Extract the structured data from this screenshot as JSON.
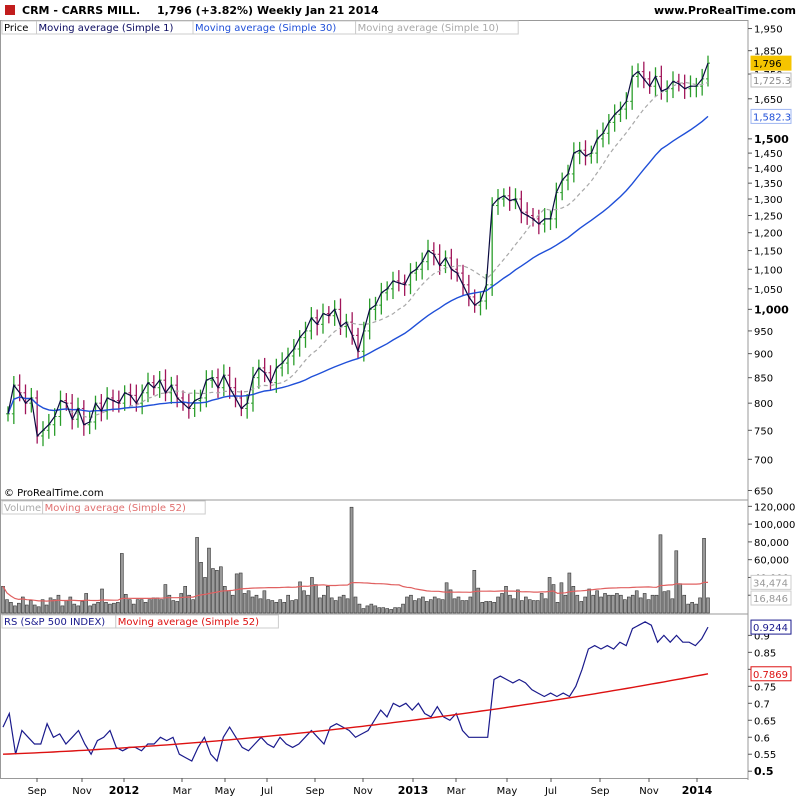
{
  "header": {
    "symbol_name": "CRM - CARRS MILL.",
    "last_change": "1,796 (+3.82%)",
    "period_date": "Weekly  Jan 21 2014",
    "site": "www.ProRealTime.com"
  },
  "copyright": "© ProRealTime.com",
  "colors": {
    "up": "#2a9d2a",
    "down": "#a0155a",
    "ma1": "#0a0a40",
    "ma30": "#1f4fd8",
    "ma10": "#a8a8a8",
    "volume": "#888888",
    "vol_ma": "#e06060",
    "rs": "#1a1a8c",
    "rs_ma": "#dd1111",
    "price_badge": "#f5c400"
  },
  "chart_data": [
    {
      "type": "ohlc",
      "panel": "price",
      "legend": [
        "Price",
        "Moving average (Simple 1)",
        "Moving average (Simple 30)",
        "Moving average (Simple 10)"
      ],
      "y_scale": "log",
      "ylim": [
        640,
        1990
      ],
      "y_ticks": [
        {
          "v": 650,
          "label": "650",
          "bold": false
        },
        {
          "v": 700,
          "label": "700",
          "bold": false
        },
        {
          "v": 750,
          "label": "750",
          "bold": false
        },
        {
          "v": 800,
          "label": "800",
          "bold": false
        },
        {
          "v": 850,
          "label": "850",
          "bold": false
        },
        {
          "v": 900,
          "label": "900",
          "bold": false
        },
        {
          "v": 950,
          "label": "950",
          "bold": false
        },
        {
          "v": 1000,
          "label": "1,000",
          "bold": true
        },
        {
          "v": 1050,
          "label": "1,050",
          "bold": false
        },
        {
          "v": 1100,
          "label": "1,100",
          "bold": false
        },
        {
          "v": 1150,
          "label": "1,150",
          "bold": false
        },
        {
          "v": 1200,
          "label": "1,200",
          "bold": false
        },
        {
          "v": 1250,
          "label": "1,250",
          "bold": false
        },
        {
          "v": 1300,
          "label": "1,300",
          "bold": false
        },
        {
          "v": 1350,
          "label": "1,350",
          "bold": false
        },
        {
          "v": 1400,
          "label": "1,400",
          "bold": false
        },
        {
          "v": 1450,
          "label": "1,450",
          "bold": false
        },
        {
          "v": 1500,
          "label": "1,500",
          "bold": true
        },
        {
          "v": 1650,
          "label": "1,650",
          "bold": false
        },
        {
          "v": 1750,
          "label": "1,750",
          "bold": false
        },
        {
          "v": 1850,
          "label": "1,850",
          "bold": false
        },
        {
          "v": 1950,
          "label": "1,950",
          "bold": false
        }
      ],
      "badges": [
        {
          "label": "1,796",
          "value": 1796,
          "style": "last"
        },
        {
          "label": "1,725.3",
          "value": 1725.3,
          "style": "ma10"
        },
        {
          "label": "1,582.3",
          "value": 1582.3,
          "style": "ma30"
        }
      ],
      "closes": [
        780,
        835,
        820,
        800,
        810,
        740,
        750,
        760,
        775,
        805,
        800,
        770,
        790,
        760,
        765,
        800,
        785,
        810,
        805,
        800,
        820,
        815,
        800,
        820,
        840,
        830,
        845,
        820,
        835,
        810,
        800,
        790,
        805,
        810,
        845,
        850,
        830,
        855,
        830,
        810,
        790,
        800,
        850,
        870,
        860,
        840,
        870,
        880,
        895,
        910,
        935,
        950,
        980,
        965,
        990,
        985,
        1000,
        960,
        970,
        940,
        905,
        950,
        1000,
        1010,
        1040,
        1050,
        1070,
        1065,
        1060,
        1090,
        1100,
        1120,
        1150,
        1140,
        1110,
        1130,
        1100,
        1090,
        1060,
        1030,
        1010,
        1020,
        1060,
        1280,
        1300,
        1310,
        1295,
        1300,
        1260,
        1250,
        1240,
        1225,
        1240,
        1240,
        1320,
        1360,
        1380,
        1450,
        1460,
        1440,
        1450,
        1500,
        1520,
        1560,
        1590,
        1610,
        1640,
        1740,
        1760,
        1730,
        1700,
        1740,
        1680,
        1690,
        1720,
        1710,
        1690,
        1700,
        1700,
        1730,
        1796
      ],
      "ma30_end": 1582.3,
      "ma10_end": 1725.3
    },
    {
      "type": "bar",
      "panel": "volume",
      "legend": [
        "Volume",
        "Moving average (Simple 52)"
      ],
      "ylim": [
        0,
        126000
      ],
      "y_ticks": [
        {
          "v": 20000,
          "label": "20,000"
        },
        {
          "v": 40000,
          "label": "40,000"
        },
        {
          "v": 60000,
          "label": "60,000"
        },
        {
          "v": 80000,
          "label": "80,000"
        },
        {
          "v": 100000,
          "label": "100,000"
        },
        {
          "v": 120000,
          "label": "120,000"
        }
      ],
      "badges": [
        {
          "label": "34,474",
          "value": 34474,
          "style": "vma"
        },
        {
          "label": "16,846",
          "value": 16846,
          "style": "vol"
        }
      ],
      "values": [
        30000,
        15000,
        12000,
        8000,
        11000,
        18000,
        9000,
        14000,
        9000,
        7000,
        15000,
        9000,
        17000,
        15000,
        20000,
        8000,
        14000,
        18000,
        10000,
        8000,
        13000,
        22000,
        8000,
        10000,
        12000,
        27000,
        12000,
        10000,
        11000,
        12000,
        67000,
        21000,
        15000,
        10000,
        15000,
        15000,
        12000,
        15000,
        17000,
        17000,
        15000,
        32000,
        20000,
        14000,
        13000,
        22000,
        30000,
        20000,
        15000,
        85000,
        57000,
        40000,
        73000,
        50000,
        48000,
        52000,
        30000,
        25000,
        20000,
        44000,
        45000,
        22000,
        25000,
        18000,
        20000,
        16000,
        25000,
        15000,
        14000,
        12000,
        15000,
        12000,
        20000,
        14000,
        15000,
        35000,
        25000,
        20000,
        40000,
        32000,
        17000,
        20000,
        30000,
        17000,
        14000,
        18000,
        20000,
        16000,
        119000,
        18000,
        10000,
        5000,
        8000,
        10000,
        8000,
        6000,
        6000,
        5000,
        4000,
        6000,
        6000,
        10000,
        18000,
        20000,
        14000,
        16000,
        18000,
        13000,
        15000,
        18000,
        16000,
        15000,
        34000,
        26000,
        16000,
        18000,
        14000,
        14000,
        18000,
        48000,
        28000,
        12000,
        13000,
        13000,
        12000,
        18000,
        22000,
        30000,
        20000,
        16000,
        26000,
        14000,
        18000,
        15000,
        14000,
        14000,
        22000,
        16000,
        40000,
        32000,
        12000,
        34000,
        20000,
        45000,
        30000,
        20000,
        13000,
        18000,
        27000,
        20000,
        25000,
        18000,
        22000,
        20000,
        20000,
        22000,
        20000,
        15000,
        18000,
        20000,
        25000,
        17000,
        22000,
        15000,
        20000,
        20000,
        88000,
        24000,
        25000,
        16000,
        70000,
        33000,
        20000,
        10000,
        12000,
        10000,
        17000,
        84000,
        17000
      ],
      "vma_end": 34474
    },
    {
      "type": "line",
      "panel": "rs",
      "legend": [
        "RS (S&P 500 INDEX)",
        "Moving average (Simple 52)"
      ],
      "ylim": [
        0.48,
        0.96
      ],
      "y_ticks": [
        {
          "v": 0.5,
          "label": "0.5",
          "bold": true
        },
        {
          "v": 0.55,
          "label": "0.55",
          "bold": false
        },
        {
          "v": 0.6,
          "label": "0.6",
          "bold": false
        },
        {
          "v": 0.65,
          "label": "0.65",
          "bold": false
        },
        {
          "v": 0.7,
          "label": "0.7",
          "bold": false
        },
        {
          "v": 0.75,
          "label": "0.75",
          "bold": false
        },
        {
          "v": 0.8,
          "label": "0.8",
          "bold": false
        },
        {
          "v": 0.85,
          "label": "0.85",
          "bold": false
        },
        {
          "v": 0.9,
          "label": "0.9",
          "bold": false
        }
      ],
      "badges": [
        {
          "label": "0.9244",
          "value": 0.9244,
          "style": "rs"
        },
        {
          "label": "0.7869",
          "value": 0.7869,
          "style": "rsma"
        }
      ],
      "rs": [
        0.63,
        0.67,
        0.55,
        0.62,
        0.6,
        0.58,
        0.58,
        0.64,
        0.6,
        0.61,
        0.58,
        0.6,
        0.62,
        0.58,
        0.55,
        0.59,
        0.6,
        0.62,
        0.57,
        0.56,
        0.57,
        0.57,
        0.56,
        0.58,
        0.58,
        0.6,
        0.59,
        0.6,
        0.55,
        0.54,
        0.53,
        0.57,
        0.6,
        0.55,
        0.53,
        0.6,
        0.63,
        0.6,
        0.57,
        0.56,
        0.58,
        0.6,
        0.58,
        0.57,
        0.6,
        0.58,
        0.57,
        0.58,
        0.6,
        0.62,
        0.6,
        0.58,
        0.63,
        0.64,
        0.63,
        0.62,
        0.6,
        0.61,
        0.62,
        0.65,
        0.68,
        0.66,
        0.7,
        0.69,
        0.7,
        0.68,
        0.7,
        0.67,
        0.66,
        0.69,
        0.66,
        0.65,
        0.67,
        0.62,
        0.6,
        0.6,
        0.6,
        0.6,
        0.77,
        0.78,
        0.77,
        0.76,
        0.77,
        0.76,
        0.74,
        0.73,
        0.72,
        0.73,
        0.72,
        0.73,
        0.72,
        0.75,
        0.8,
        0.86,
        0.87,
        0.86,
        0.87,
        0.86,
        0.88,
        0.87,
        0.92,
        0.93,
        0.94,
        0.93,
        0.88,
        0.9,
        0.88,
        0.9,
        0.88,
        0.88,
        0.87,
        0.89,
        0.9244
      ],
      "rs_ma_start": 0.55,
      "rs_ma_end": 0.7869
    }
  ],
  "x_labels": [
    {
      "label": "Sep",
      "bold": false
    },
    {
      "label": "Nov",
      "bold": false
    },
    {
      "label": "2012",
      "bold": true
    },
    {
      "label": "Mar",
      "bold": false
    },
    {
      "label": "May",
      "bold": false
    },
    {
      "label": "Jul",
      "bold": false
    },
    {
      "label": "Sep",
      "bold": false
    },
    {
      "label": "Nov",
      "bold": false
    },
    {
      "label": "2013",
      "bold": true
    },
    {
      "label": "Mar",
      "bold": false
    },
    {
      "label": "May",
      "bold": false
    },
    {
      "label": "Jul",
      "bold": false
    },
    {
      "label": "Sep",
      "bold": false
    },
    {
      "label": "Nov",
      "bold": false
    },
    {
      "label": "2014",
      "bold": true
    }
  ]
}
